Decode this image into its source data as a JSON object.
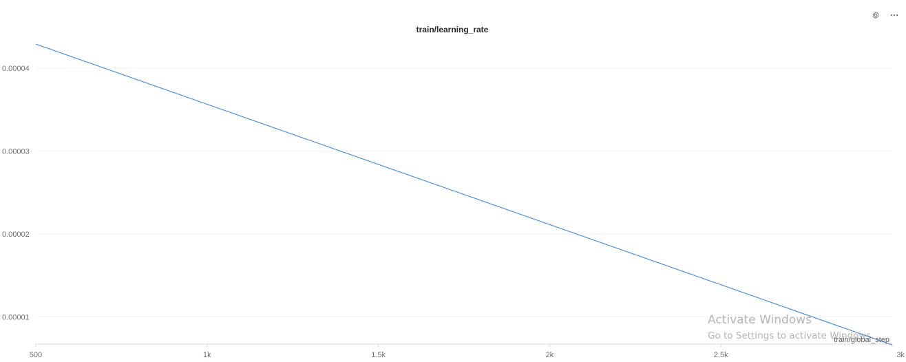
{
  "panel": {
    "settings_icon": "gear-icon",
    "more_icon": "ellipsis-icon"
  },
  "overlay": {
    "watermark_title": "Activate Windows",
    "watermark_subtitle": "Go to Settings to activate Windows."
  },
  "chart_data": {
    "type": "line",
    "title": "train/learning_rate",
    "xlabel": "train/global_step",
    "ylabel": "",
    "xlim": [
      500,
      3000
    ],
    "ylim": [
      6.7e-06,
      4.34e-05
    ],
    "x_ticks": [
      500,
      1000,
      1500,
      2000,
      2500,
      3000
    ],
    "x_tick_labels": [
      "500",
      "1k",
      "1.5k",
      "2k",
      "2.5k",
      "3k"
    ],
    "y_ticks": [
      1e-05,
      2e-05,
      3e-05,
      4e-05
    ],
    "y_tick_labels": [
      "0.00001",
      "0.00002",
      "0.00003",
      "0.00004"
    ],
    "grid": true,
    "legend": "none",
    "series": [
      {
        "color": "#4a90e2",
        "x": [
          500,
          3000
        ],
        "y": [
          4.29e-05,
          6.6e-06
        ]
      }
    ]
  }
}
